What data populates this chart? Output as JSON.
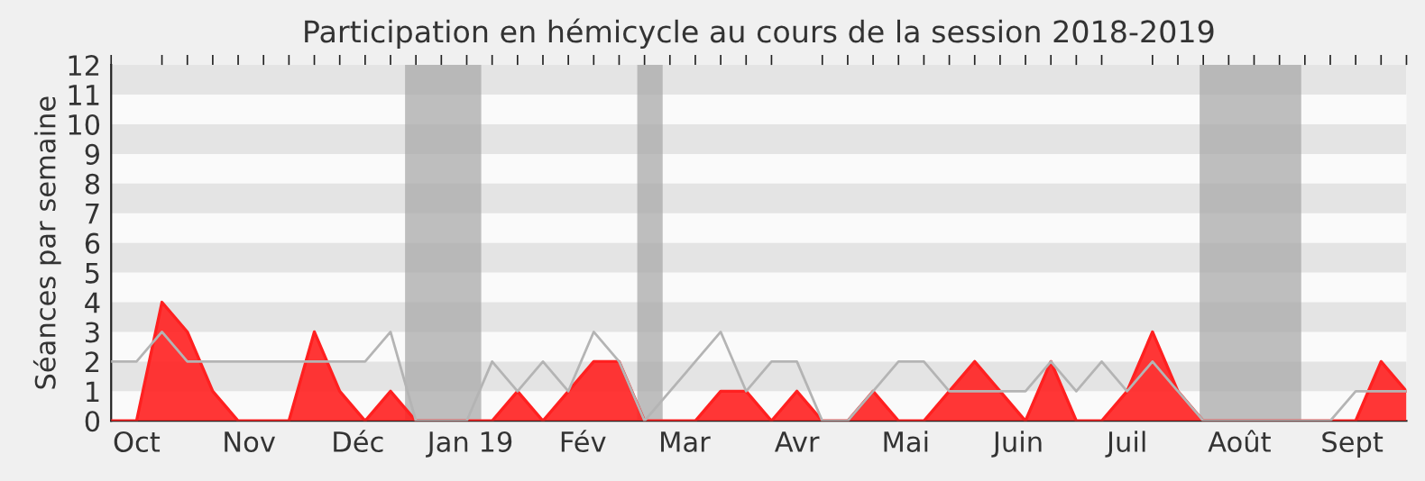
{
  "chart_data": {
    "type": "area",
    "title": "Participation en hémicycle au cours de la session 2018-2019",
    "ylabel": "Séances par semaine",
    "x": [
      "2018-09-24",
      "2018-10-01",
      "2018-10-08",
      "2018-10-15",
      "2018-10-22",
      "2018-10-29",
      "2018-11-05",
      "2018-11-12",
      "2018-11-19",
      "2018-11-26",
      "2018-12-03",
      "2018-12-10",
      "2018-12-17",
      "2018-12-24",
      "2018-12-31",
      "2019-01-07",
      "2019-01-14",
      "2019-01-21",
      "2019-01-28",
      "2019-02-04",
      "2019-02-11",
      "2019-02-18",
      "2019-02-25",
      "2019-03-04",
      "2019-03-11",
      "2019-03-18",
      "2019-03-25",
      "2019-04-01",
      "2019-04-08",
      "2019-04-15",
      "2019-04-22",
      "2019-04-29",
      "2019-05-06",
      "2019-05-13",
      "2019-05-20",
      "2019-05-27",
      "2019-06-03",
      "2019-06-10",
      "2019-06-17",
      "2019-06-24",
      "2019-07-01",
      "2019-07-08",
      "2019-07-15",
      "2019-07-22",
      "2019-07-29",
      "2019-08-05",
      "2019-08-12",
      "2019-08-19",
      "2019-08-26",
      "2019-09-02",
      "2019-09-09",
      "2019-09-16"
    ],
    "series": [
      {
        "type": "line",
        "color": "#b4b4b4",
        "values": [
          2,
          2,
          3,
          2,
          2,
          2,
          2,
          2,
          2,
          2,
          2,
          3,
          0,
          0,
          0,
          2,
          1,
          2,
          1,
          3,
          2,
          0,
          1,
          2,
          3,
          1,
          2,
          2,
          0,
          0,
          1,
          2,
          2,
          1,
          1,
          1,
          1,
          2,
          1,
          2,
          1,
          2,
          1,
          0,
          0,
          0,
          0,
          0,
          0,
          1,
          1,
          1
        ]
      },
      {
        "color": "#ff2020",
        "values": [
          0,
          0,
          4,
          3,
          1,
          0,
          0,
          0,
          3,
          1,
          0,
          1,
          0,
          0,
          0,
          0,
          1,
          0,
          1,
          2,
          2,
          0,
          0,
          0,
          1,
          1,
          0,
          1,
          0,
          0,
          1,
          0,
          0,
          1,
          2,
          1,
          0,
          2,
          0,
          0,
          1,
          3,
          1,
          0,
          0,
          0,
          0,
          0,
          0,
          0,
          2,
          1
        ]
      }
    ],
    "bands": [
      {
        "axis": "x",
        "from": "2018-12-14",
        "to": "2019-01-04",
        "color": "#aaaaaa"
      },
      {
        "axis": "x",
        "from": "2019-02-16",
        "to": "2019-02-23",
        "color": "#aaaaaa"
      },
      {
        "axis": "x",
        "from": "2019-07-21",
        "to": "2019-08-18",
        "color": "#aaaaaa"
      }
    ],
    "xlim": [
      "2018-09-24",
      "2019-09-16"
    ],
    "ylim": [
      0,
      12
    ],
    "xticks": [
      {
        "value": "2018-10-01",
        "label": "Oct"
      },
      {
        "value": "2018-11-01",
        "label": "Nov"
      },
      {
        "value": "2018-12-01",
        "label": "Déc"
      },
      {
        "value": "2019-01-01",
        "label": "Jan 19"
      },
      {
        "value": "2019-02-01",
        "label": "Fév"
      },
      {
        "value": "2019-03-01",
        "label": "Mar"
      },
      {
        "value": "2019-04-01",
        "label": "Avr"
      },
      {
        "value": "2019-05-01",
        "label": "Mai"
      },
      {
        "value": "2019-06-01",
        "label": "Juin"
      },
      {
        "value": "2019-07-01",
        "label": "Juil"
      },
      {
        "value": "2019-08-01",
        "label": "Août"
      },
      {
        "value": "2019-09-01",
        "label": "Sept"
      }
    ],
    "yticks": [
      0,
      1,
      2,
      3,
      4,
      5,
      6,
      7,
      8,
      9,
      10,
      11,
      12
    ],
    "legend": false
  }
}
